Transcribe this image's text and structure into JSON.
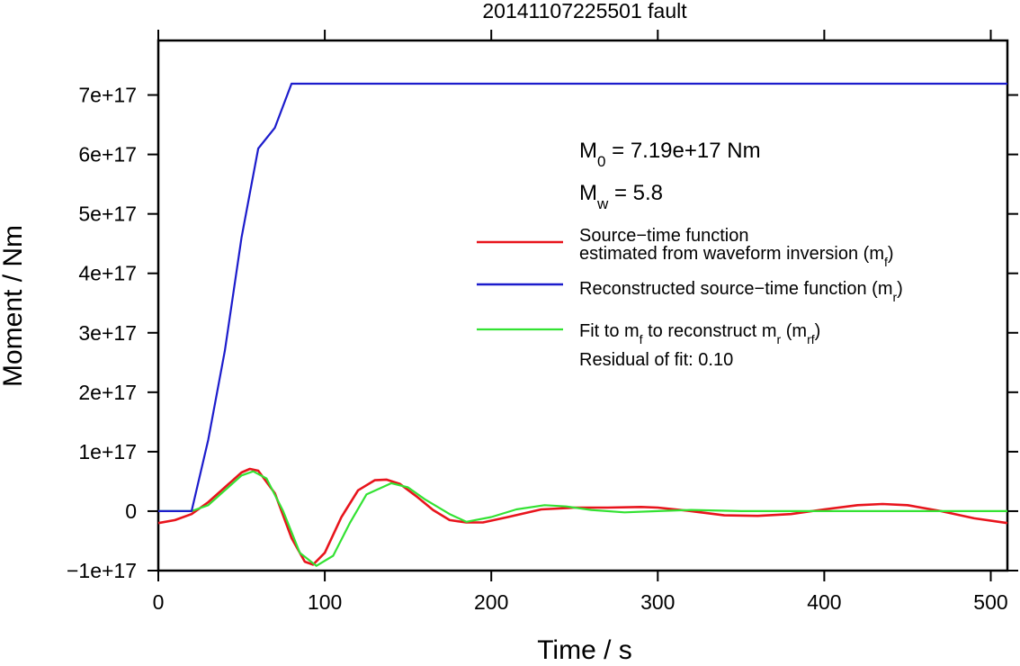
{
  "chart_data": {
    "type": "line",
    "title": "20141107225501 fault",
    "xlabel": "Time / s",
    "ylabel": "Moment / Nm",
    "xlim": [
      0,
      510
    ],
    "ylim": [
      -1e+17,
      8e+17
    ],
    "grid": false,
    "x_ticks": [
      {
        "value": 0,
        "label": "0"
      },
      {
        "value": 100,
        "label": "100"
      },
      {
        "value": 200,
        "label": "200"
      },
      {
        "value": 300,
        "label": "300"
      },
      {
        "value": 400,
        "label": "400"
      },
      {
        "value": 500,
        "label": "500"
      }
    ],
    "y_ticks": [
      {
        "value": -1e+17,
        "label": "−1e+17"
      },
      {
        "value": 0,
        "label": "0"
      },
      {
        "value": 1e+17,
        "label": "1e+17"
      },
      {
        "value": 2e+17,
        "label": "2e+17"
      },
      {
        "value": 3e+17,
        "label": "3e+17"
      },
      {
        "value": 4e+17,
        "label": "4e+17"
      },
      {
        "value": 5e+17,
        "label": "5e+17"
      },
      {
        "value": 6e+17,
        "label": "6e+17"
      },
      {
        "value": 7e+17,
        "label": "7e+17"
      }
    ],
    "annotations": {
      "m0": {
        "sym": "M",
        "sub": "0",
        "rest": " = 7.19e+17 Nm"
      },
      "mw": {
        "sym": "M",
        "sub": "w",
        "rest": " = 5.8"
      },
      "residual": "Residual of fit: 0.10"
    },
    "legend": {
      "placement": "right",
      "entries": [
        {
          "series": "red",
          "color": "#e8141c",
          "line1": "Source−time function",
          "line2": "estimated from waveform inversion (m",
          "sub": "f",
          "tail": ")"
        },
        {
          "series": "blue",
          "color": "#1c1ccc",
          "line1": "Reconstructed source−time function (m",
          "sub": "r",
          "tail": ")"
        },
        {
          "series": "green",
          "color": "#33e233",
          "line1": "Fit to m",
          "sub": "f",
          "mid": " to reconstruct m",
          "sub2": "r",
          "mid2": " (m",
          "sub3": "rf",
          "tail": ")"
        }
      ]
    },
    "series": [
      {
        "color": "#1c1ccc",
        "x": [
          0,
          20,
          30,
          40,
          50,
          60,
          70,
          80,
          510
        ],
        "y": [
          0,
          0,
          1.2e+17,
          2.7e+17,
          4.6e+17,
          6.1e+17,
          6.45e+17,
          7.19e+17,
          7.19e+17
        ]
      },
      {
        "color": "#e8141c",
        "x": [
          0,
          10,
          20,
          30,
          40,
          50,
          55,
          60,
          70,
          80,
          88,
          93,
          100,
          110,
          120,
          130,
          137,
          145,
          155,
          165,
          175,
          185,
          195,
          210,
          230,
          250,
          270,
          290,
          300,
          320,
          340,
          360,
          380,
          400,
          420,
          435,
          450,
          470,
          490,
          510
        ],
        "y": [
          -2e+16,
          -1.5e+16,
          -5000000000000000.0,
          1.5e+16,
          4e+16,
          6.5e+16,
          7.1e+16,
          6.8e+16,
          3e+16,
          -4.5e+16,
          -8.5e+16,
          -9e+16,
          -7e+16,
          -1e+16,
          3.5e+16,
          5.2e+16,
          5.3e+16,
          4.6e+16,
          2.5e+16,
          2000000000000000.0,
          -1.5e+16,
          -1.9e+16,
          -1.9e+16,
          -1e+16,
          3000000000000000.0,
          6000000000000000.0,
          6000000000000000.0,
          7000000000000000.0,
          6000000000000000.0,
          0,
          -7000000000000000.0,
          -8000000000000000.0,
          -5000000000000000.0,
          3000000000000000.0,
          1e+16,
          1.2e+16,
          1e+16,
          0,
          -1.2e+16,
          -2e+16
        ]
      },
      {
        "color": "#33e233",
        "x": [
          0,
          20,
          30,
          40,
          50,
          57,
          65,
          75,
          85,
          95,
          105,
          115,
          125,
          140,
          150,
          160,
          175,
          185,
          200,
          215,
          232,
          245,
          260,
          280,
          300,
          320,
          350,
          400,
          450,
          510
        ],
        "y": [
          0,
          0,
          1e+16,
          3.5e+16,
          6e+16,
          6.7e+16,
          5.5e+16,
          0,
          -7e+16,
          -9.2e+16,
          -7.5e+16,
          -2e+16,
          2.8e+16,
          4.7e+16,
          4e+16,
          2e+16,
          -5000000000000000.0,
          -1.8e+16,
          -1e+16,
          3000000000000000.0,
          1e+16,
          8000000000000000.0,
          2000000000000000.0,
          -2000000000000000.0,
          0,
          2000000000000000.0,
          0,
          0,
          0,
          0
        ]
      }
    ]
  }
}
